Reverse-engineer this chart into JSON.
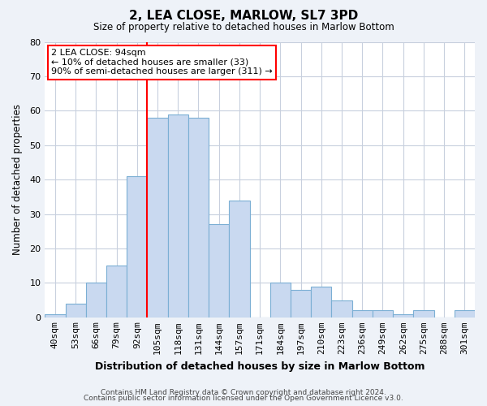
{
  "title": "2, LEA CLOSE, MARLOW, SL7 3PD",
  "subtitle": "Size of property relative to detached houses in Marlow Bottom",
  "xlabel": "Distribution of detached houses by size in Marlow Bottom",
  "ylabel": "Number of detached properties",
  "footer_line1": "Contains HM Land Registry data © Crown copyright and database right 2024.",
  "footer_line2": "Contains public sector information licensed under the Open Government Licence v3.0.",
  "bin_labels": [
    "40sqm",
    "53sqm",
    "66sqm",
    "79sqm",
    "92sqm",
    "105sqm",
    "118sqm",
    "131sqm",
    "144sqm",
    "157sqm",
    "171sqm",
    "184sqm",
    "197sqm",
    "210sqm",
    "223sqm",
    "236sqm",
    "249sqm",
    "262sqm",
    "275sqm",
    "288sqm",
    "301sqm"
  ],
  "bar_values": [
    1,
    4,
    10,
    15,
    41,
    58,
    59,
    58,
    27,
    34,
    0,
    10,
    8,
    9,
    5,
    2,
    2,
    1,
    2,
    0,
    2
  ],
  "bar_color": "#c9d9f0",
  "bar_edge_color": "#7bafd4",
  "vline_color": "red",
  "annotation_line1": "2 LEA CLOSE: 94sqm",
  "annotation_line2": "← 10% of detached houses are smaller (33)",
  "annotation_line3": "90% of semi-detached houses are larger (311) →",
  "ylim": [
    0,
    80
  ],
  "yticks": [
    0,
    10,
    20,
    30,
    40,
    50,
    60,
    70,
    80
  ],
  "bg_color": "#eef2f8",
  "plot_bg_color": "#ffffff",
  "grid_color": "#c8d0de"
}
